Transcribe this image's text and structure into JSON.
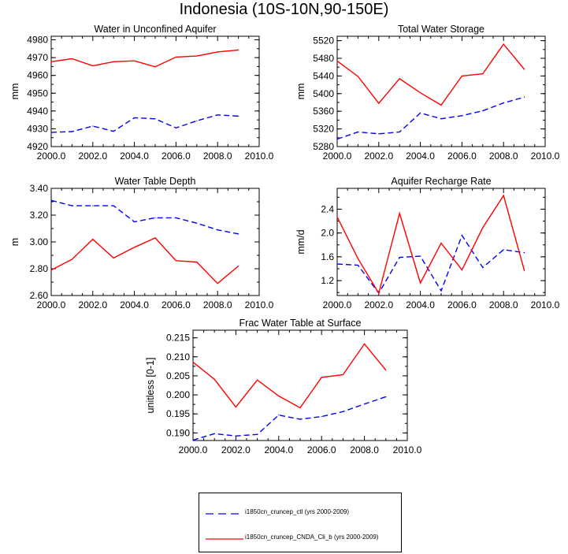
{
  "title": "Indonesia (10S-10N,90-150E)",
  "colors": {
    "ctl": "#0000ff",
    "cnda": "#ff0000",
    "axis": "#000000"
  },
  "legend": {
    "items": [
      {
        "label": "i1850cn_cruncep_ctl (yrs 2000-2009)",
        "color": "#0000ff",
        "dash": "dashed"
      },
      {
        "label": "i1850cn_cruncep_CNDA_Cli_b (yrs 2000-2009)",
        "color": "#ff0000",
        "dash": "solid"
      }
    ]
  },
  "chart_data": [
    {
      "type": "line",
      "title": "Water in Unconfined Aquifer",
      "xlabel": "",
      "ylabel": "mm",
      "xlim": [
        2000,
        2010
      ],
      "ylim": [
        4920,
        4982
      ],
      "xticks": [
        "2000.0",
        "2002.0",
        "2004.0",
        "2006.0",
        "2008.0",
        "2010.0"
      ],
      "yticks": [
        4920,
        4930,
        4940,
        4950,
        4960,
        4970,
        4980
      ],
      "ytick_labels": [
        "4920",
        "4930",
        "4940",
        "4950",
        "4960",
        "4970",
        "4980"
      ],
      "x": [
        2000,
        2001,
        2002,
        2003,
        2004,
        2005,
        2006,
        2007,
        2008,
        2009
      ],
      "series": [
        {
          "values": [
            4928,
            4928.4,
            4931.5,
            4928.6,
            4936.2,
            4935.6,
            4930.5,
            4934.5,
            4937.8,
            4937.1
          ],
          "color": "#0000ff",
          "dash": "dashed"
        },
        {
          "values": [
            4967.7,
            4969.4,
            4965.4,
            4967.7,
            4968.2,
            4964.8,
            4970.3,
            4970.9,
            4973.2,
            4974.3
          ],
          "color": "#ff0000",
          "dash": "solid"
        }
      ]
    },
    {
      "type": "line",
      "title": "Total Water Storage",
      "xlabel": "",
      "ylabel": "mm",
      "xlim": [
        2000,
        2010
      ],
      "ylim": [
        5280,
        5530
      ],
      "xticks": [
        "2000.0",
        "2002.0",
        "2004.0",
        "2006.0",
        "2008.0",
        "2010.0"
      ],
      "yticks": [
        5280,
        5320,
        5360,
        5400,
        5440,
        5480,
        5520
      ],
      "ytick_labels": [
        "5280",
        "5320",
        "5360",
        "5400",
        "5440",
        "5480",
        "5520"
      ],
      "x": [
        2000,
        2001,
        2002,
        2003,
        2004,
        2005,
        2006,
        2007,
        2008,
        2009
      ],
      "series": [
        {
          "values": [
            5297,
            5313,
            5309,
            5313,
            5356,
            5343,
            5350,
            5361,
            5379,
            5392
          ],
          "color": "#0000ff",
          "dash": "dashed"
        },
        {
          "values": [
            5474,
            5439,
            5378,
            5434,
            5402,
            5374,
            5440,
            5445,
            5512,
            5455
          ],
          "color": "#ff0000",
          "dash": "solid"
        }
      ]
    },
    {
      "type": "line",
      "title": "Water Table Depth",
      "xlabel": "",
      "ylabel": "m",
      "xlim": [
        2000,
        2010
      ],
      "ylim": [
        2.6,
        3.4
      ],
      "xticks": [
        "2000.0",
        "2002.0",
        "2004.0",
        "2006.0",
        "2008.0",
        "2010.0"
      ],
      "yticks": [
        2.6,
        2.8,
        3.0,
        3.2,
        3.4
      ],
      "ytick_labels": [
        "2.60",
        "2.80",
        "3.00",
        "3.20",
        "3.40"
      ],
      "x": [
        2000,
        2001,
        2002,
        2003,
        2004,
        2005,
        2006,
        2007,
        2008,
        2009
      ],
      "series": [
        {
          "values": [
            3.31,
            3.27,
            3.27,
            3.27,
            3.15,
            3.18,
            3.18,
            3.14,
            3.09,
            3.06
          ],
          "color": "#0000ff",
          "dash": "dashed"
        },
        {
          "values": [
            2.79,
            2.87,
            3.02,
            2.88,
            2.96,
            3.03,
            2.86,
            2.85,
            2.69,
            2.82
          ],
          "color": "#ff0000",
          "dash": "solid"
        }
      ]
    },
    {
      "type": "line",
      "title": "Aquifer Recharge Rate",
      "xlabel": "",
      "ylabel": "mm/d",
      "xlim": [
        2000,
        2010
      ],
      "ylim": [
        0.95,
        2.75
      ],
      "xticks": [
        "2000.0",
        "2002.0",
        "2004.0",
        "2006.0",
        "2008.0",
        "2010.0"
      ],
      "yticks": [
        1.2,
        1.6,
        2.0,
        2.4
      ],
      "ytick_labels": [
        "1.2",
        "1.6",
        "2.0",
        "2.4"
      ],
      "x": [
        2000,
        2001,
        2002,
        2003,
        2004,
        2005,
        2006,
        2007,
        2008,
        2009
      ],
      "series": [
        {
          "values": [
            1.48,
            1.46,
            0.99,
            1.59,
            1.61,
            1.03,
            1.96,
            1.42,
            1.72,
            1.67
          ],
          "color": "#0000ff",
          "dash": "dashed"
        },
        {
          "values": [
            2.27,
            1.57,
            0.99,
            2.33,
            1.16,
            1.83,
            1.38,
            2.09,
            2.63,
            1.37
          ],
          "color": "#ff0000",
          "dash": "solid"
        }
      ]
    },
    {
      "type": "line",
      "title": "Frac Water Table at Surface",
      "xlabel": "",
      "ylabel": "unitless [0-1]",
      "xlim": [
        2000,
        2010
      ],
      "ylim": [
        0.188,
        0.217
      ],
      "xticks": [
        "2000.0",
        "2002.0",
        "2004.0",
        "2006.0",
        "2008.0",
        "2010.0"
      ],
      "yticks": [
        0.19,
        0.195,
        0.2,
        0.205,
        0.21,
        0.215
      ],
      "ytick_labels": [
        "0.190",
        "0.195",
        "0.200",
        "0.205",
        "0.210",
        "0.215"
      ],
      "x": [
        2000,
        2001,
        2002,
        2003,
        2004,
        2005,
        2006,
        2007,
        2008,
        2009
      ],
      "series": [
        {
          "values": [
            0.1881,
            0.1898,
            0.1892,
            0.1896,
            0.1947,
            0.1936,
            0.1943,
            0.1956,
            0.1976,
            0.1995
          ],
          "color": "#0000ff",
          "dash": "dashed"
        },
        {
          "values": [
            0.2086,
            0.2041,
            0.1968,
            0.2039,
            0.1997,
            0.1966,
            0.2046,
            0.2053,
            0.2134,
            0.2065
          ],
          "color": "#ff0000",
          "dash": "solid"
        }
      ]
    }
  ]
}
